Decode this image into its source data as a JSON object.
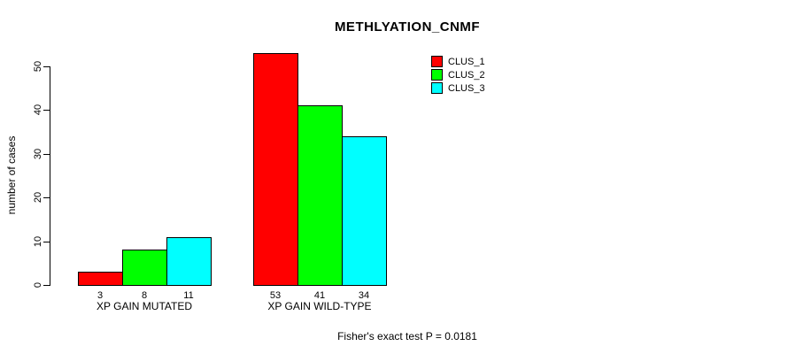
{
  "chart_data": {
    "type": "bar",
    "title": "METHLYATION_CNMF",
    "ylabel": "number of cases",
    "xlabel": "",
    "ylim": [
      0,
      50
    ],
    "yticks": [
      0,
      10,
      20,
      30,
      40,
      50
    ],
    "grid": false,
    "legend_position": "top-right-inside",
    "categories": [
      "XP GAIN MUTATED",
      "XP GAIN WILD-TYPE"
    ],
    "series": [
      {
        "name": "CLUS_1",
        "color": "#ff0000",
        "values": [
          3,
          53
        ]
      },
      {
        "name": "CLUS_2",
        "color": "#00ff00",
        "values": [
          8,
          41
        ]
      },
      {
        "name": "CLUS_3",
        "color": "#00ffff",
        "values": [
          11,
          34
        ]
      }
    ],
    "annotation": "Fisher's exact test P = 0.0181"
  }
}
